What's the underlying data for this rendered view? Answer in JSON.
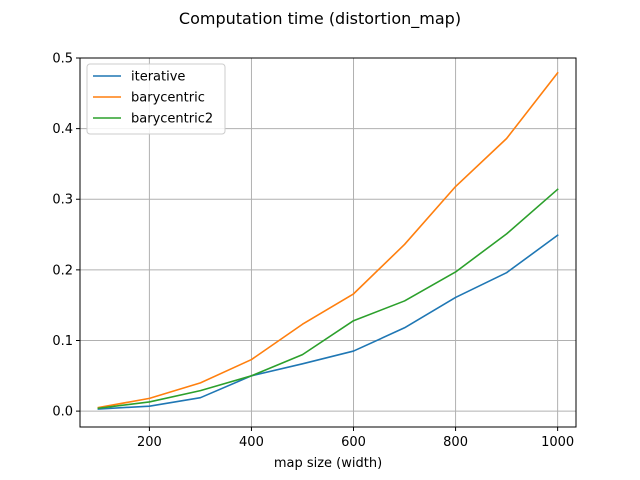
{
  "chart_data": {
    "type": "line",
    "title": "Computation time (distortion_map)",
    "xlabel": "map size (width)",
    "ylabel": "",
    "x": [
      100,
      200,
      300,
      400,
      500,
      600,
      700,
      800,
      900,
      1000
    ],
    "xlim": [
      64,
      1036
    ],
    "ylim": [
      -0.0225,
      0.5
    ],
    "xticks": [
      200,
      400,
      600,
      800,
      1000
    ],
    "yticks": [
      0.0,
      0.1,
      0.2,
      0.3,
      0.4,
      0.5
    ],
    "xtick_labels": [
      "200",
      "400",
      "600",
      "800",
      "1000"
    ],
    "ytick_labels": [
      "0.0",
      "0.1",
      "0.2",
      "0.3",
      "0.4",
      "0.5"
    ],
    "grid": true,
    "legend_position": "top-left",
    "series": [
      {
        "name": "iterative",
        "color": "#1f77b4",
        "values": [
          0.003,
          0.007,
          0.019,
          0.05,
          0.067,
          0.085,
          0.118,
          0.161,
          0.196,
          0.249
        ]
      },
      {
        "name": "barycentric",
        "color": "#ff7f0e",
        "values": [
          0.005,
          0.018,
          0.04,
          0.073,
          0.123,
          0.166,
          0.236,
          0.318,
          0.386,
          0.479
        ]
      },
      {
        "name": "barycentric2",
        "color": "#2ca02c",
        "values": [
          0.004,
          0.013,
          0.029,
          0.05,
          0.08,
          0.128,
          0.156,
          0.197,
          0.251,
          0.314
        ]
      }
    ]
  }
}
